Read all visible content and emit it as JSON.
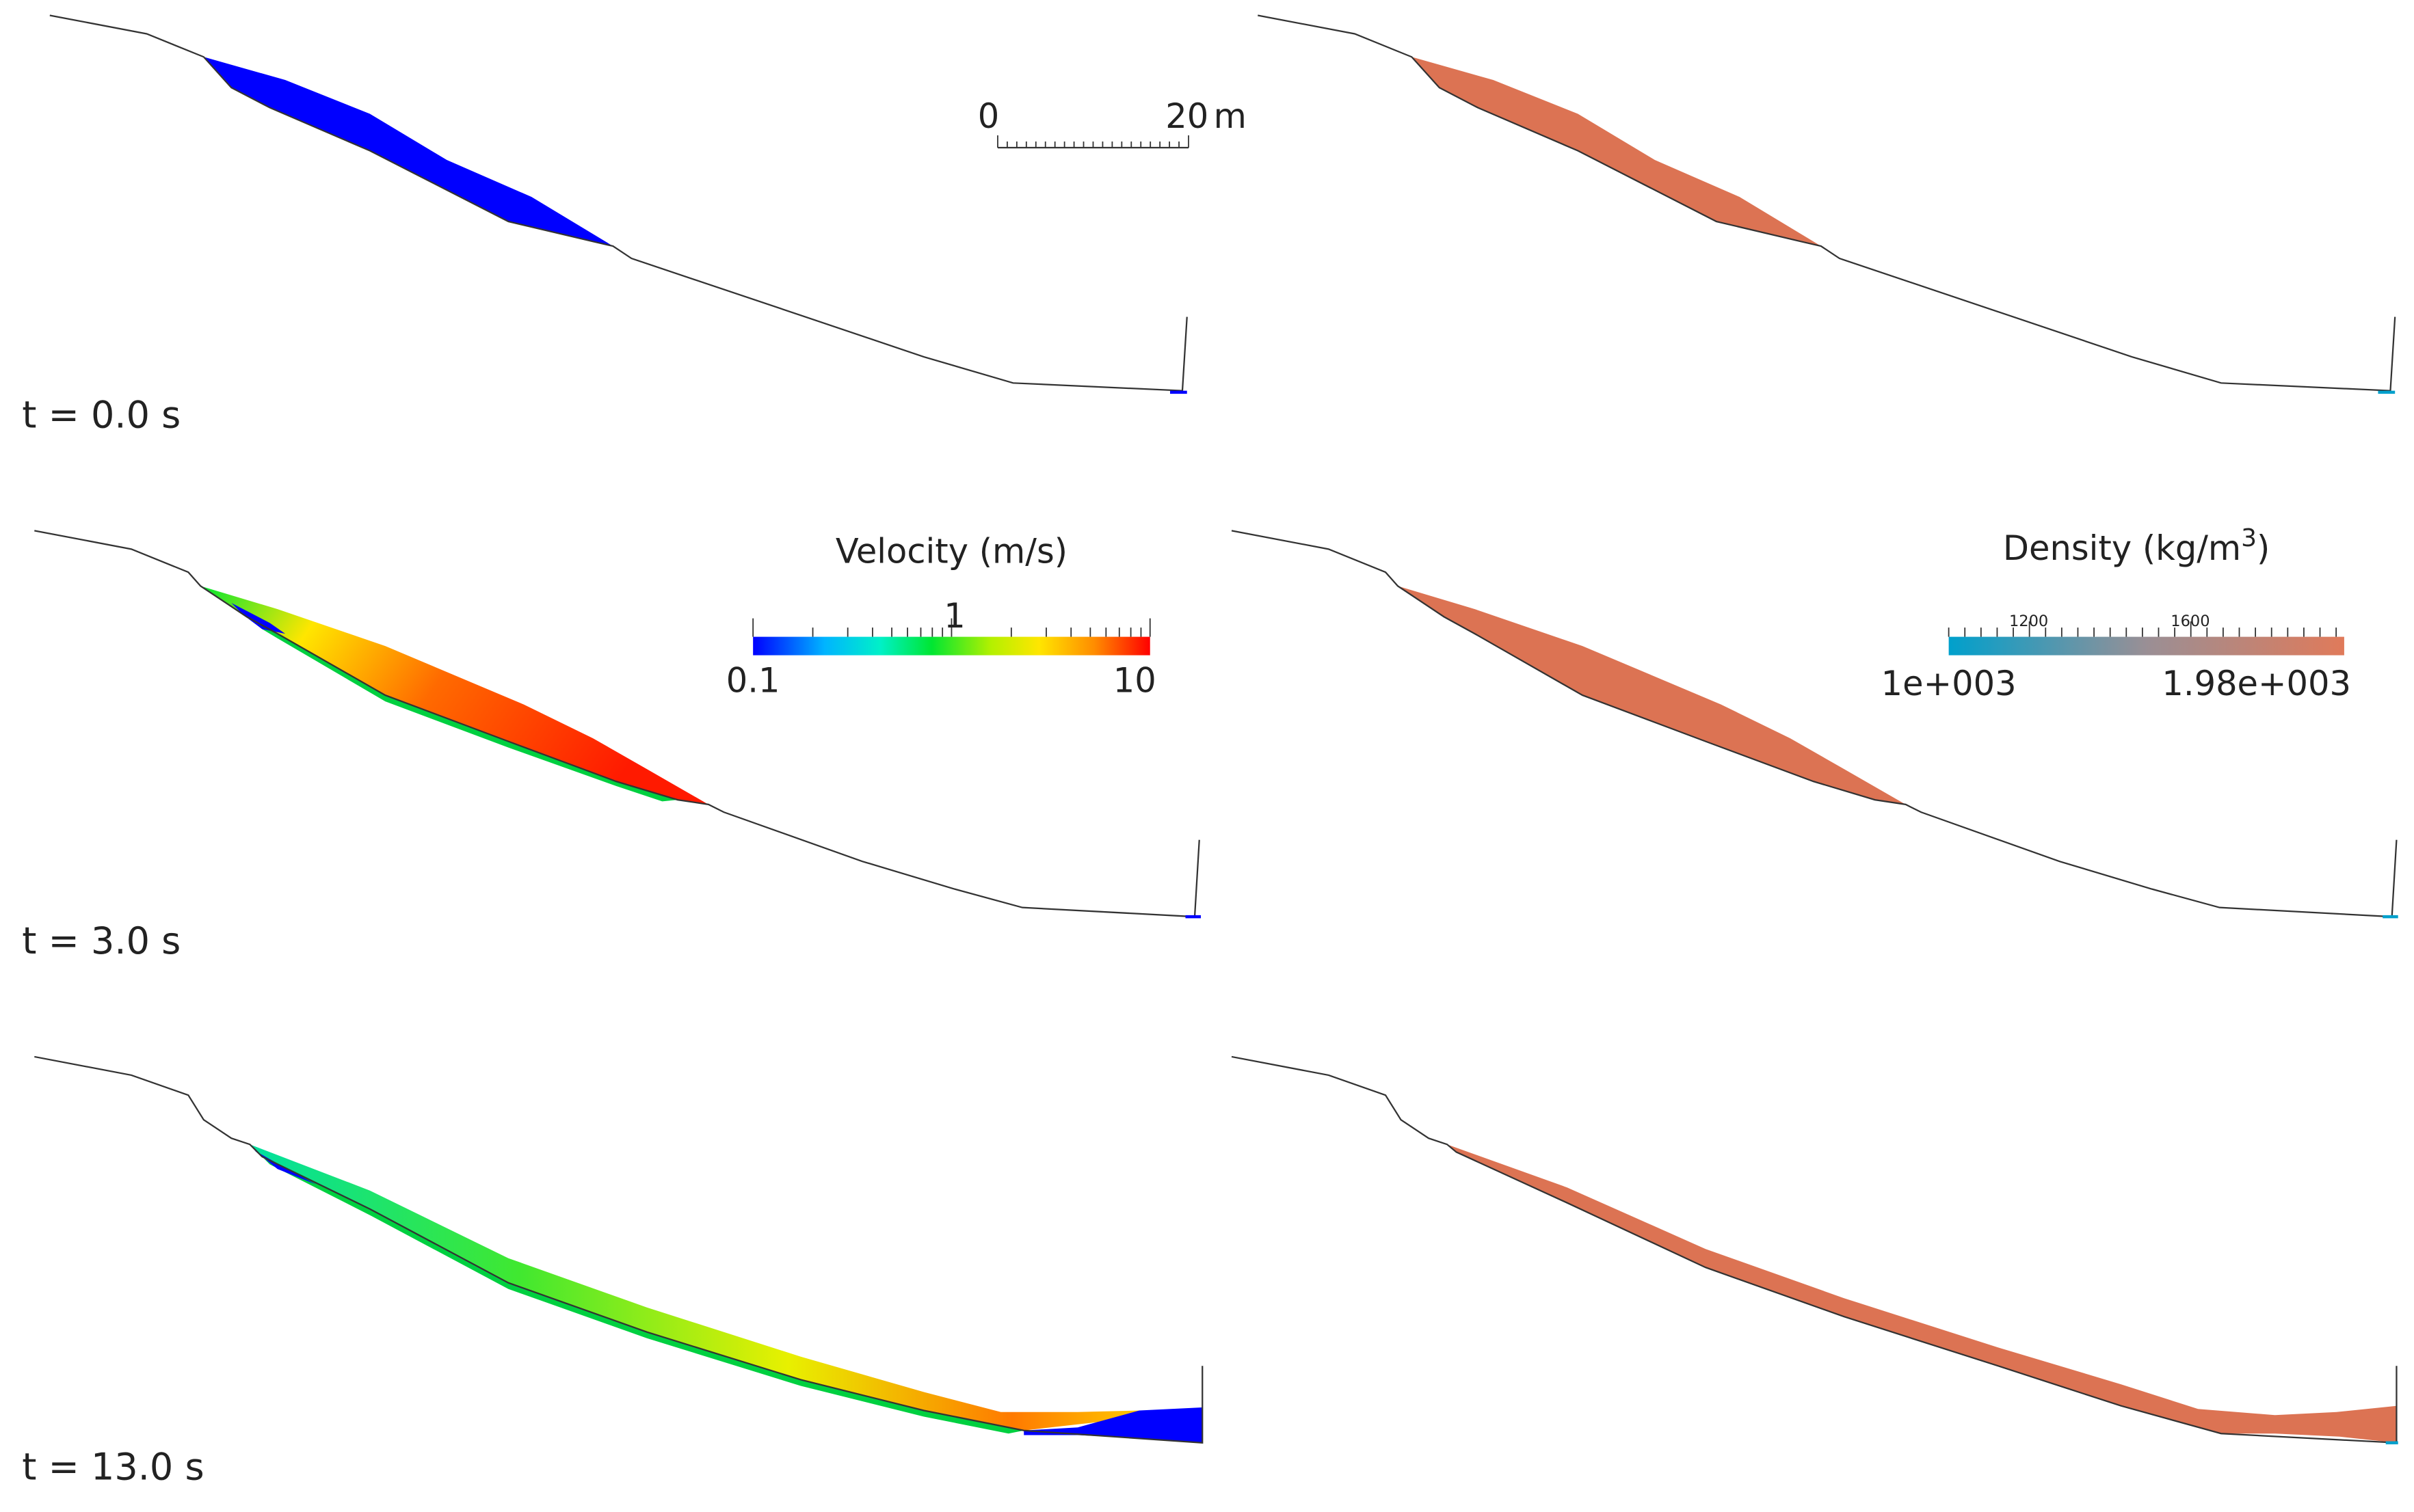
{
  "time_labels": [
    "t = 0.0 s",
    "t = 3.0 s",
    "t = 13.0 s"
  ],
  "scale_bar": {
    "start_label": "0",
    "end_label": "20",
    "unit": "m"
  },
  "velocity_legend": {
    "title": "Velocity (m/s)",
    "min_label": "0.1",
    "mid_label": "1",
    "max_label": "10",
    "scale": "log",
    "colormap": [
      "#0000ff",
      "#00b4ff",
      "#00f0c8",
      "#00e632",
      "#b4f000",
      "#ffe600",
      "#ff8c00",
      "#ff0000"
    ]
  },
  "density_legend": {
    "title": "Density (kg/m",
    "title_sup": "3",
    "title_end": ")",
    "min_label": "1e+003",
    "max_label": "1.98e+003",
    "minor_labels": [
      "1200",
      "1600"
    ],
    "color_low": "#00a0cc",
    "color_high": "#e07a5a"
  },
  "colors": {
    "terrain_line": "#333333",
    "velocity_initial": "#0000ff",
    "density_fill": "#dc7353"
  }
}
